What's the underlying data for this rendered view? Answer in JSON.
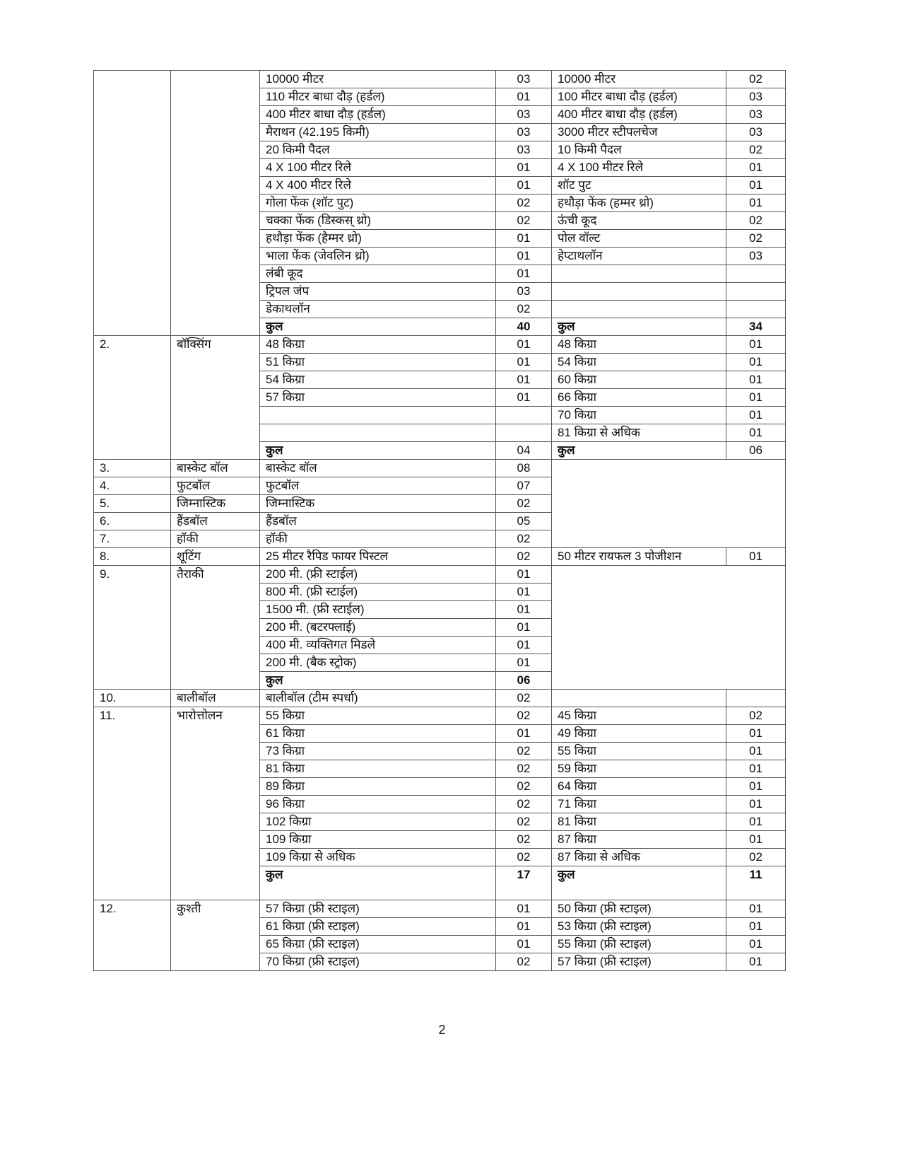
{
  "page_number": "2",
  "total_label": "कुल",
  "sections": [
    {
      "no": "",
      "sport": "",
      "rows": [
        {
          "l": [
            "10000 मीटर",
            "03"
          ],
          "r": [
            "10000 मीटर",
            "02"
          ]
        },
        {
          "l": [
            "110 मीटर बाधा दौड़ (हर्डल)",
            "01"
          ],
          "r": [
            "100 मीटर बाधा दौड़ (हर्डल)",
            "03"
          ]
        },
        {
          "l": [
            "400 मीटर बाधा दौड़ (हर्डल)",
            "03"
          ],
          "r": [
            "400 मीटर बाधा दौड़ (हर्डल)",
            "03"
          ]
        },
        {
          "l": [
            "मैराथन (42.195 किमी)",
            "03"
          ],
          "r": [
            "3000 मीटर स्टीपलचेज",
            "03"
          ]
        },
        {
          "l": [
            "20 किमी पैदल",
            "03"
          ],
          "r": [
            "10 किमी पैदल",
            "02"
          ]
        },
        {
          "l": [
            "4 X 100 मीटर रिले",
            "01"
          ],
          "r": [
            "4 X 100 मीटर रिले",
            "01"
          ]
        },
        {
          "l": [
            "4 X 400 मीटर रिले",
            "01"
          ],
          "r": [
            "शॉट पुट",
            "01"
          ]
        },
        {
          "l": [
            "गोला फेंक (शॉट पुट)",
            "02"
          ],
          "r": [
            "हथौड़ा फेंक (हम्मर थ्रो)",
            "01"
          ]
        },
        {
          "l": [
            "चक्का फेंक (डिस्कस् थ्रो)",
            "02"
          ],
          "r": [
            "ऊंची कूद",
            "02"
          ]
        },
        {
          "l": [
            "हथौड़ा फेंक (हैम्मर थ्रो)",
            "01"
          ],
          "r": [
            "पोल वॉल्ट",
            "02"
          ]
        },
        {
          "l": [
            "भाला फेंक (जेवलिन थ्रो)",
            "01"
          ],
          "r": [
            "हेप्टाथलॉन",
            "03"
          ]
        },
        {
          "l": [
            "लंबी कूद",
            "01"
          ],
          "r": [
            "",
            ""
          ]
        },
        {
          "l": [
            "ट्रिपल जंप",
            "03"
          ],
          "r": [
            "",
            ""
          ]
        },
        {
          "l": [
            "डेकाथलॉन",
            "02"
          ],
          "r": [
            "",
            ""
          ]
        },
        {
          "l": [
            "कुल",
            "40"
          ],
          "r": [
            "कुल",
            "34"
          ],
          "total": true,
          "boldnum": true
        }
      ]
    },
    {
      "no": "2.",
      "sport": "बॉक्सिंग",
      "rows": [
        {
          "l": [
            "48 किग्रा",
            "01"
          ],
          "r": [
            "48 किग्रा",
            "01"
          ]
        },
        {
          "l": [
            "51 किग्रा",
            "01"
          ],
          "r": [
            "54 किग्रा",
            "01"
          ]
        },
        {
          "l": [
            "54 किग्रा",
            "01"
          ],
          "r": [
            "60 किग्रा",
            "01"
          ]
        },
        {
          "l": [
            "57 किग्रा",
            "01"
          ],
          "r": [
            "66 किग्रा",
            "01"
          ]
        },
        {
          "l": [
            "",
            ""
          ],
          "r": [
            "70 किग्रा",
            "01"
          ]
        },
        {
          "l": [
            "",
            ""
          ],
          "r": [
            "81 किग्रा से अधिक",
            "01"
          ]
        },
        {
          "l": [
            "कुल",
            "04"
          ],
          "r": [
            "कुल",
            "06"
          ],
          "total": true
        }
      ]
    },
    {
      "no": "3.",
      "sport": "बास्केट बॉल",
      "rows": [
        {
          "l": [
            "बास्केट बॉल",
            "08"
          ],
          "r": "merged"
        }
      ]
    },
    {
      "no": "4.",
      "sport": "फुटबॉल",
      "rows": [
        {
          "l": [
            "फुटबॉल",
            "07"
          ],
          "r": "merged"
        }
      ]
    },
    {
      "no": "5.",
      "sport": "जिम्नास्टिक",
      "rows": [
        {
          "l": [
            "जिम्नास्टिक",
            "02"
          ],
          "r": "merged"
        }
      ]
    },
    {
      "no": "6.",
      "sport": "हैंडबॉल",
      "rows": [
        {
          "l": [
            "हैंडबॉल",
            "05"
          ],
          "r": "merged"
        }
      ]
    },
    {
      "no": "7.",
      "sport": "हॉकी",
      "rows": [
        {
          "l": [
            "हॉकी",
            "02"
          ],
          "r": "merged"
        }
      ]
    },
    {
      "no": "8.",
      "sport": "शूटिंग",
      "rows": [
        {
          "l": [
            "25 मीटर रैपिड फायर पिस्टल",
            "02"
          ],
          "r": [
            "50 मीटर रायफल 3 पोजीशन",
            "01"
          ]
        }
      ]
    },
    {
      "no": "9.",
      "sport": "तैराकी",
      "rows": [
        {
          "l": [
            "200 मी. (फ्री स्टाईल)",
            "01"
          ],
          "r": "merged"
        },
        {
          "l": [
            "800 मी. (फ्री स्टाईल)",
            "01"
          ],
          "r": "merged"
        },
        {
          "l": [
            "1500 मी. (फ्री स्टाईल)",
            "01"
          ],
          "r": "merged"
        },
        {
          "l": [
            "200 मी. (बटरफ्लाई)",
            "01"
          ],
          "r": "merged"
        },
        {
          "l": [
            "400 मी. व्यक्तिगत मिडले",
            "01"
          ],
          "r": "merged"
        },
        {
          "l": [
            "200 मी. (बैक स्ट्रोक)",
            "01"
          ],
          "r": "merged"
        },
        {
          "l": [
            "कुल",
            "06"
          ],
          "r": "merged",
          "total": true,
          "boldnum": true
        }
      ]
    },
    {
      "no": "10.",
      "sport": "बालीबॉल",
      "rows": [
        {
          "l": [
            "बालीबॉल (टीम स्पर्धा)",
            "02"
          ],
          "r": [
            "",
            ""
          ]
        }
      ]
    },
    {
      "no": "11.",
      "sport": "भारोत्तोलन",
      "rows": [
        {
          "l": [
            "55 किग्रा",
            "02"
          ],
          "r": [
            "45 किग्रा",
            "02"
          ]
        },
        {
          "l": [
            "61 किग्रा",
            "01"
          ],
          "r": [
            "49 किग्रा",
            "01"
          ]
        },
        {
          "l": [
            "73 किग्रा",
            "02"
          ],
          "r": [
            "55 किग्रा",
            "01"
          ]
        },
        {
          "l": [
            "81 किग्रा",
            "02"
          ],
          "r": [
            "59 किग्रा",
            "01"
          ]
        },
        {
          "l": [
            "89 किग्रा",
            "02"
          ],
          "r": [
            "64 किग्रा",
            "01"
          ]
        },
        {
          "l": [
            "96 किग्रा",
            "02"
          ],
          "r": [
            "71 किग्रा",
            "01"
          ]
        },
        {
          "l": [
            "102 किग्रा",
            "02"
          ],
          "r": [
            "81 किग्रा",
            "01"
          ]
        },
        {
          "l": [
            "109 किग्रा",
            "02"
          ],
          "r": [
            "87 किग्रा",
            "01"
          ]
        },
        {
          "l": [
            "109 किग्रा से अधिक",
            "02"
          ],
          "r": [
            "87 किग्रा से अधिक",
            "02"
          ]
        },
        {
          "l": [
            "कुल",
            "17"
          ],
          "r": [
            "कुल",
            "11"
          ],
          "total": true,
          "boldnum": true,
          "tall": true
        }
      ]
    },
    {
      "no": "12.",
      "sport": "कुश्ती",
      "rows": [
        {
          "l": [
            "57 किग्रा (फ्री स्टाइल)",
            "01"
          ],
          "r": [
            "50 किग्रा (फ्री स्टाइल)",
            "01"
          ]
        },
        {
          "l": [
            "61 किग्रा (फ्री स्टाइल)",
            "01"
          ],
          "r": [
            "53 किग्रा (फ्री स्टाइल)",
            "01"
          ]
        },
        {
          "l": [
            "65 किग्रा (फ्री स्टाइल)",
            "01"
          ],
          "r": [
            "55 किग्रा (फ्री स्टाइल)",
            "01"
          ]
        },
        {
          "l": [
            "70 किग्रा (फ्री स्टाइल)",
            "02"
          ],
          "r": [
            "57 किग्रा (फ्री स्टाइल)",
            "01"
          ]
        }
      ]
    }
  ]
}
